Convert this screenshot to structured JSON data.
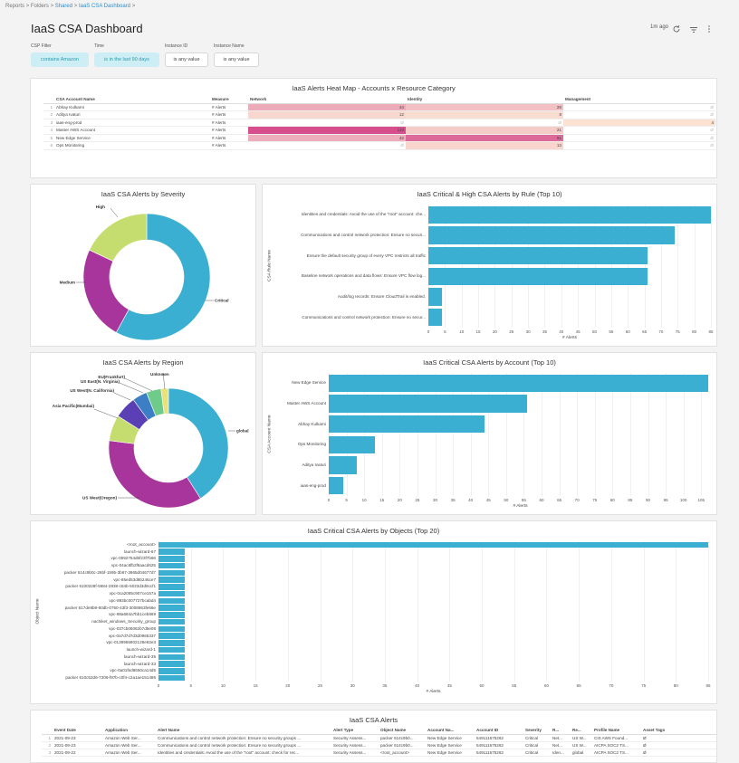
{
  "breadcrumb": {
    "reports": "Reports",
    "sep": ">",
    "folders": "Folders",
    "shared": "Shared",
    "current": "IaaS CSA Dashboard"
  },
  "header": {
    "title": "IaaS CSA Dashboard",
    "updated": "1m ago"
  },
  "filters": [
    {
      "label": "CSP Filter",
      "value": "contains Amazon"
    },
    {
      "label": "Time",
      "value": "is in the last 90 days"
    },
    {
      "label": "Instance ID",
      "value": "is any value"
    },
    {
      "label": "Instance Name",
      "value": "is any value"
    }
  ],
  "heatmap": {
    "title": "IaaS Alerts Heat Map - Accounts x Resource Category",
    "columns": [
      "CSA Account Name",
      "Measure",
      "Network",
      "Identity",
      "Management"
    ],
    "rows": [
      {
        "idx": "1",
        "name": "Abhay Kulkarni",
        "measure": "# Alerts",
        "network": "44",
        "identity": "29",
        "management": "Ø"
      },
      {
        "idx": "2",
        "name": "Aditya Ivaturi",
        "measure": "# Alerts",
        "network": "12",
        "identity": "8",
        "management": "Ø"
      },
      {
        "idx": "3",
        "name": "iaas-eng-prod",
        "measure": "# Alerts",
        "network": "Ø",
        "identity": "Ø",
        "management": "4"
      },
      {
        "idx": "4",
        "name": "Master AWS Account",
        "measure": "# Alerts",
        "network": "110",
        "identity": "21",
        "management": "Ø"
      },
      {
        "idx": "5",
        "name": "New Edge Service",
        "measure": "# Alerts",
        "network": "42",
        "identity": "91",
        "management": "Ø"
      },
      {
        "idx": "6",
        "name": "Ops Monitoring",
        "measure": "# Alerts",
        "network": "Ø",
        "identity": "13",
        "management": "Ø"
      }
    ]
  },
  "chart_data": [
    {
      "type": "pie",
      "title": "IaaS CSA Alerts by Severity",
      "labels": [
        "Critical",
        "Medium",
        "High"
      ],
      "values": [
        58,
        24,
        18
      ],
      "colors": [
        "#3aafd1",
        "#a8359c",
        "#c5dd6e"
      ]
    },
    {
      "type": "bar",
      "orientation": "horizontal",
      "title": "IaaS Critical & High CSA Alerts by Rule (Top 10)",
      "categories": [
        "Identities and credentials: Avoid the use of the \"root\" account: che...",
        "Communications and control network protection: Ensure no securi...",
        "Ensure the default security group of every VPC restricts all traffic",
        "Baseline network operations and data flows: Ensure VPC flow log...",
        "Audit/log records: Ensure CloudTrail is enabled.",
        "Communications and control network protection: Ensure no secur..."
      ],
      "values": [
        85,
        74,
        66,
        66,
        4,
        4
      ],
      "xlabel": "# Alerts",
      "ylabel": "CSA Rule Name",
      "ticks": [
        "0",
        "5",
        "10",
        "15",
        "20",
        "25",
        "30",
        "35",
        "40",
        "45",
        "50",
        "55",
        "60",
        "65",
        "70",
        "75",
        "80",
        "85"
      ],
      "xlim": [
        0,
        85
      ]
    },
    {
      "type": "pie",
      "title": "IaaS CSA Alerts by Region",
      "labels": [
        "global",
        "US West(Oregon)",
        "Asia Pacific(Mumbai)",
        "US West(N. California)",
        "US East(N. Virginia)",
        "EU(Frankfurt)",
        "Unknown"
      ],
      "values": [
        41,
        36,
        7,
        6,
        4,
        4,
        2
      ],
      "colors": [
        "#3aafd1",
        "#a8359c",
        "#c5dd6e",
        "#5b3fb5",
        "#3d7fc4",
        "#6ecb8a",
        "#e9e27a"
      ]
    },
    {
      "type": "bar",
      "orientation": "horizontal",
      "title": "IaaS Critical CSA Alerts by Account (Top 10)",
      "categories": [
        "New Edge Service",
        "Master AWS Account",
        "Abhay Kulkarni",
        "Ops Monitoring",
        "Aditya Ivaturi",
        "iaas-eng-prod"
      ],
      "values": [
        107,
        56,
        44,
        13,
        8,
        4
      ],
      "xlabel": "# Alerts",
      "ylabel": "CSA Account Name",
      "ticks": [
        "0",
        "5",
        "10",
        "15",
        "20",
        "25",
        "30",
        "35",
        "40",
        "45",
        "50",
        "55",
        "60",
        "65",
        "70",
        "75",
        "80",
        "85",
        "90",
        "95",
        "100",
        "105"
      ],
      "xlim": [
        0,
        108
      ]
    },
    {
      "type": "bar",
      "orientation": "horizontal",
      "title": "IaaS Critical CSA Alerts by Objects (Top 20)",
      "categories": [
        "<root_account>",
        "launch-wizard-67",
        "vpc-0692754d5f23f7b66",
        "vpc-04ac6fb2f6aacd625",
        "packer 614c9b0c-26bf-1595-3b67-3665d04677d7",
        "vpc-85ed53d9b246ce7",
        "packer 6100328f-5684-2838-c84b-5023d3d9ccf1",
        "vpc-0ca2085c907ce157a",
        "vpc-893bc007727bcabd4",
        "packer 617de8b9-80db-0760-43f3-3008863fe66e",
        "vpc-88a684a7bb1ceb869",
        "nachiket_windows_Security_group",
        "vpc-037cb06062b7d5e08",
        "vpc-0a7d7d7d3d0965337",
        "vpc-0139955802128e62e3",
        "launch-wizard-1",
        "launch-wizard-35",
        "launch-wizard-33",
        "vpc-0a01fed6550ca14d5",
        "packer 610c52d6-7206-f97b-c0f4-c2a1ae151486"
      ],
      "values": [
        85,
        4,
        4,
        4,
        4,
        4,
        4,
        4,
        4,
        4,
        4,
        4,
        4,
        4,
        4,
        4,
        4,
        4,
        4,
        4
      ],
      "xlabel": "# Alerts",
      "ylabel": "Object Name",
      "ticks": [
        "0",
        "5",
        "10",
        "15",
        "20",
        "25",
        "30",
        "35",
        "40",
        "45",
        "50",
        "55",
        "60",
        "65",
        "70",
        "75",
        "80",
        "85"
      ],
      "xlim": [
        0,
        85
      ]
    }
  ],
  "alerts": {
    "title": "IaaS CSA Alerts",
    "columns": [
      "Event Date",
      "Application",
      "Alert Name",
      "Alert Type",
      "Object Name",
      "Account Na...",
      "Account ID",
      "Severity",
      "R...",
      "Re...",
      "Profile Name",
      "Asset Tags"
    ],
    "rows": [
      {
        "idx": "1",
        "cells": [
          "2021-09-23",
          "Amazon Web Ser...",
          "Communications and control network protection: Ensure no security groups ...",
          "Security Assess...",
          "packer 614c9b0...",
          "New Edge Service",
          "549111675262",
          "Critical",
          "Net...",
          "US W...",
          "CIS AWS Found...",
          "Ø"
        ]
      },
      {
        "idx": "2",
        "cells": [
          "2021-09-23",
          "Amazon Web Ser...",
          "Communications and control network protection: Ensure no security groups ...",
          "Security Assess...",
          "packer 614c9b0...",
          "New Edge Service",
          "549111675262",
          "Critical",
          "Net...",
          "US W...",
          "AICPA SOC2 TS...",
          "Ø"
        ]
      },
      {
        "idx": "3",
        "cells": [
          "2021-09-22",
          "Amazon Web Ser...",
          "Identities and credentials: Avoid the use of the \"root\" account: check for rec...",
          "Security Assess...",
          "<root_account>",
          "New Edge Service",
          "549111675262",
          "Critical",
          "Iden...",
          "global",
          "AICPA SOC2 TS...",
          "Ø"
        ]
      }
    ]
  }
}
